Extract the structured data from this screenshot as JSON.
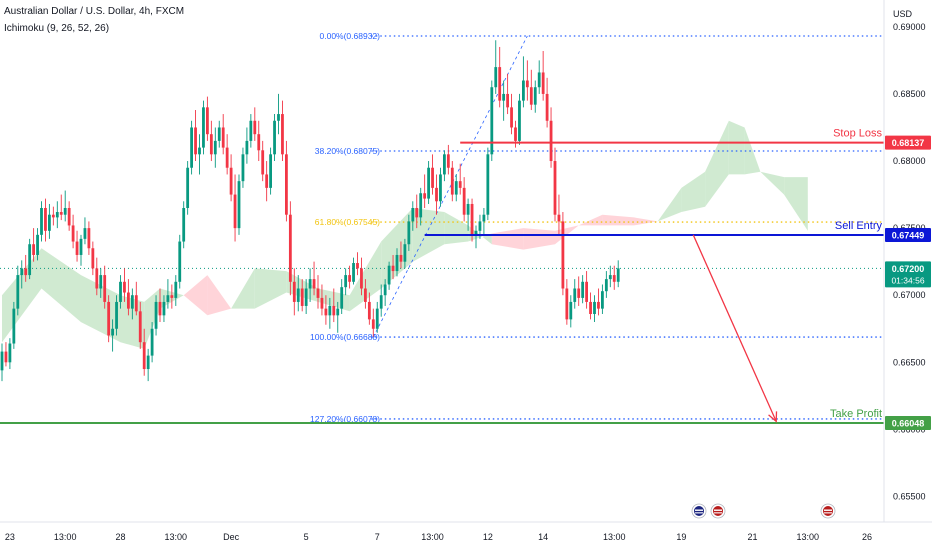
{
  "header": {
    "symbol_line": "Australian Dollar / U.S. Dollar, 4h, FXCM",
    "indicator_line": "Ichimoku (9, 26, 52, 26)"
  },
  "chart_data": {
    "type": "candlestick",
    "currency": "USD",
    "ylim": [
      0.6531,
      0.692
    ],
    "price_ticks": [
      "0.69000",
      "0.68500",
      "0.68000",
      "0.67500",
      "0.67000",
      "0.66500",
      "0.66000",
      "0.65500"
    ],
    "price_tick_values": [
      0.69,
      0.685,
      0.68,
      0.675,
      0.67,
      0.665,
      0.66,
      0.655
    ],
    "time_ticks": [
      {
        "label": "23",
        "bar": 2
      },
      {
        "label": "13:00",
        "bar": 16
      },
      {
        "label": "28",
        "bar": 30
      },
      {
        "label": "13:00",
        "bar": 44
      },
      {
        "label": "Dec",
        "bar": 58
      },
      {
        "label": "5",
        "bar": 77
      },
      {
        "label": "7",
        "bar": 95
      },
      {
        "label": "13:00",
        "bar": 109
      },
      {
        "label": "12",
        "bar": 123
      },
      {
        "label": "14",
        "bar": 137
      },
      {
        "label": "13:00",
        "bar": 155
      },
      {
        "label": "19",
        "bar": 172
      },
      {
        "label": "21",
        "bar": 190
      },
      {
        "label": "13:00",
        "bar": 204
      },
      {
        "label": "26",
        "bar": 219
      }
    ],
    "fibonacci": [
      {
        "label": "0.00%(0.68932)",
        "price": 0.68932
      },
      {
        "label": "38.20%(0.68075)",
        "price": 0.68075
      },
      {
        "label": "61.80%(0.67545)",
        "price": 0.67545
      },
      {
        "label": "100.00%(0.66688)",
        "price": 0.66688
      },
      {
        "label": "127.20%(0.66078)",
        "price": 0.66078
      }
    ],
    "levels": [
      {
        "name": "Stop Loss",
        "price": 0.68137,
        "price_label": "0.68137",
        "color": "#f23645"
      },
      {
        "name": "Sell Entry",
        "price": 0.67449,
        "price_label": "0.67449",
        "color": "#0c17d6"
      },
      {
        "name": "Take Profit",
        "price": 0.66048,
        "price_label": "0.66048",
        "color": "#43a047"
      }
    ],
    "last_price": {
      "price": 0.672,
      "label": "0.67200",
      "countdown": "01:34:56"
    },
    "forecast_arrow": {
      "from_bar": 175,
      "from_price": 0.6745,
      "to_bar": 196,
      "to_price": 0.6606
    },
    "colors": {
      "up": "#089981",
      "down": "#f23645",
      "cloud_bull": "#c8e6c9",
      "cloud_bear": "#ffcdd2"
    },
    "ohlc": [
      [
        0.6644,
        0.6664,
        0.6636,
        0.6658
      ],
      [
        0.6658,
        0.6665,
        0.6647,
        0.665
      ],
      [
        0.665,
        0.6668,
        0.6645,
        0.6664
      ],
      [
        0.6664,
        0.6695,
        0.666,
        0.669
      ],
      [
        0.669,
        0.6722,
        0.6685,
        0.6715
      ],
      [
        0.6715,
        0.6726,
        0.6705,
        0.672
      ],
      [
        0.672,
        0.673,
        0.671,
        0.6715
      ],
      [
        0.6715,
        0.6742,
        0.6712,
        0.6738
      ],
      [
        0.6738,
        0.675,
        0.6725,
        0.673
      ],
      [
        0.673,
        0.675,
        0.6726,
        0.6745
      ],
      [
        0.6745,
        0.677,
        0.674,
        0.6765
      ],
      [
        0.6765,
        0.6772,
        0.674,
        0.6748
      ],
      [
        0.6748,
        0.6768,
        0.6742,
        0.676
      ],
      [
        0.676,
        0.6766,
        0.6752,
        0.6758
      ],
      [
        0.6758,
        0.677,
        0.675,
        0.6762
      ],
      [
        0.6762,
        0.6775,
        0.6756,
        0.676
      ],
      [
        0.676,
        0.6778,
        0.6755,
        0.6765
      ],
      [
        0.6765,
        0.677,
        0.6748,
        0.6752
      ],
      [
        0.6752,
        0.676,
        0.6735,
        0.674
      ],
      [
        0.674,
        0.6748,
        0.6725,
        0.673
      ],
      [
        0.673,
        0.6745,
        0.6722,
        0.6742
      ],
      [
        0.6742,
        0.6758,
        0.6738,
        0.675
      ],
      [
        0.675,
        0.6755,
        0.673,
        0.6735
      ],
      [
        0.6735,
        0.674,
        0.6715,
        0.672
      ],
      [
        0.672,
        0.6728,
        0.67,
        0.6705
      ],
      [
        0.6705,
        0.672,
        0.6698,
        0.6715
      ],
      [
        0.6715,
        0.6722,
        0.669,
        0.6695
      ],
      [
        0.6695,
        0.67,
        0.6665,
        0.667
      ],
      [
        0.667,
        0.6682,
        0.6658,
        0.6675
      ],
      [
        0.6675,
        0.67,
        0.667,
        0.6695
      ],
      [
        0.6695,
        0.6715,
        0.669,
        0.671
      ],
      [
        0.671,
        0.672,
        0.6695,
        0.6702
      ],
      [
        0.6702,
        0.6712,
        0.6685,
        0.669
      ],
      [
        0.669,
        0.6705,
        0.6682,
        0.67
      ],
      [
        0.67,
        0.671,
        0.6685,
        0.6688
      ],
      [
        0.6688,
        0.6695,
        0.666,
        0.6665
      ],
      [
        0.6665,
        0.6675,
        0.664,
        0.6645
      ],
      [
        0.6645,
        0.666,
        0.6636,
        0.6655
      ],
      [
        0.6655,
        0.668,
        0.665,
        0.6675
      ],
      [
        0.6675,
        0.67,
        0.667,
        0.6695
      ],
      [
        0.6695,
        0.6705,
        0.668,
        0.6685
      ],
      [
        0.6685,
        0.67,
        0.668,
        0.6695
      ],
      [
        0.6695,
        0.6712,
        0.669,
        0.67
      ],
      [
        0.67,
        0.6708,
        0.669,
        0.6698
      ],
      [
        0.6698,
        0.6715,
        0.6692,
        0.671
      ],
      [
        0.671,
        0.6745,
        0.6705,
        0.674
      ],
      [
        0.674,
        0.677,
        0.6735,
        0.6765
      ],
      [
        0.6765,
        0.68,
        0.676,
        0.6795
      ],
      [
        0.6795,
        0.683,
        0.679,
        0.6825
      ],
      [
        0.6825,
        0.6838,
        0.68,
        0.6805
      ],
      [
        0.6805,
        0.682,
        0.679,
        0.681
      ],
      [
        0.681,
        0.6845,
        0.6805,
        0.684
      ],
      [
        0.684,
        0.6848,
        0.6815,
        0.682
      ],
      [
        0.682,
        0.683,
        0.68,
        0.6805
      ],
      [
        0.6805,
        0.6825,
        0.6795,
        0.6815
      ],
      [
        0.6815,
        0.683,
        0.681,
        0.6825
      ],
      [
        0.6825,
        0.6835,
        0.6805,
        0.681
      ],
      [
        0.681,
        0.682,
        0.679,
        0.6795
      ],
      [
        0.6795,
        0.6805,
        0.677,
        0.6775
      ],
      [
        0.6775,
        0.679,
        0.674,
        0.675
      ],
      [
        0.675,
        0.679,
        0.6745,
        0.6785
      ],
      [
        0.6785,
        0.681,
        0.678,
        0.6805
      ],
      [
        0.6805,
        0.6825,
        0.6798,
        0.6815
      ],
      [
        0.6815,
        0.6835,
        0.681,
        0.683
      ],
      [
        0.683,
        0.684,
        0.6815,
        0.682
      ],
      [
        0.682,
        0.683,
        0.68,
        0.6808
      ],
      [
        0.6808,
        0.6815,
        0.6785,
        0.679
      ],
      [
        0.679,
        0.68,
        0.677,
        0.678
      ],
      [
        0.678,
        0.681,
        0.6775,
        0.6805
      ],
      [
        0.6805,
        0.6835,
        0.68,
        0.683
      ],
      [
        0.683,
        0.685,
        0.682,
        0.6835
      ],
      [
        0.6835,
        0.6845,
        0.68,
        0.6805
      ],
      [
        0.6805,
        0.6815,
        0.6755,
        0.676
      ],
      [
        0.676,
        0.677,
        0.67,
        0.671
      ],
      [
        0.671,
        0.672,
        0.6685,
        0.6695
      ],
      [
        0.6695,
        0.6715,
        0.6688,
        0.6705
      ],
      [
        0.6705,
        0.6712,
        0.6688,
        0.6692
      ],
      [
        0.6692,
        0.6712,
        0.6686,
        0.6705
      ],
      [
        0.6705,
        0.672,
        0.6695,
        0.6712
      ],
      [
        0.6712,
        0.6725,
        0.67,
        0.6705
      ],
      [
        0.6705,
        0.6715,
        0.669,
        0.6698
      ],
      [
        0.6698,
        0.6708,
        0.6685,
        0.669
      ],
      [
        0.669,
        0.67,
        0.6678,
        0.6685
      ],
      [
        0.6685,
        0.6698,
        0.6675,
        0.6692
      ],
      [
        0.6692,
        0.6705,
        0.668,
        0.6685
      ],
      [
        0.6685,
        0.6695,
        0.6672,
        0.669
      ],
      [
        0.669,
        0.6712,
        0.6686,
        0.6706
      ],
      [
        0.6706,
        0.672,
        0.67,
        0.6715
      ],
      [
        0.6715,
        0.6722,
        0.6705,
        0.671
      ],
      [
        0.671,
        0.6728,
        0.6708,
        0.6724
      ],
      [
        0.6724,
        0.6732,
        0.6715,
        0.672
      ],
      [
        0.672,
        0.6728,
        0.67,
        0.6705
      ],
      [
        0.6705,
        0.6712,
        0.669,
        0.6695
      ],
      [
        0.6695,
        0.6702,
        0.6678,
        0.6682
      ],
      [
        0.6682,
        0.669,
        0.6669,
        0.6675
      ],
      [
        0.6675,
        0.6695,
        0.6672,
        0.669
      ],
      [
        0.669,
        0.6708,
        0.6684,
        0.67
      ],
      [
        0.67,
        0.6712,
        0.6692,
        0.6708
      ],
      [
        0.6708,
        0.6725,
        0.6704,
        0.6722
      ],
      [
        0.6722,
        0.673,
        0.6712,
        0.6718
      ],
      [
        0.6718,
        0.6735,
        0.6714,
        0.673
      ],
      [
        0.673,
        0.674,
        0.672,
        0.6725
      ],
      [
        0.6725,
        0.6742,
        0.672,
        0.6738
      ],
      [
        0.6738,
        0.676,
        0.6733,
        0.6755
      ],
      [
        0.6755,
        0.677,
        0.6748,
        0.6765
      ],
      [
        0.6765,
        0.6775,
        0.675,
        0.6758
      ],
      [
        0.6758,
        0.678,
        0.6752,
        0.6776
      ],
      [
        0.6776,
        0.679,
        0.6765,
        0.6772
      ],
      [
        0.6772,
        0.68,
        0.6768,
        0.6795
      ],
      [
        0.6795,
        0.6805,
        0.6775,
        0.678
      ],
      [
        0.678,
        0.679,
        0.676,
        0.677
      ],
      [
        0.677,
        0.6795,
        0.6766,
        0.679
      ],
      [
        0.679,
        0.6808,
        0.6785,
        0.6805
      ],
      [
        0.6805,
        0.6812,
        0.679,
        0.6795
      ],
      [
        0.6795,
        0.68,
        0.677,
        0.6775
      ],
      [
        0.6775,
        0.679,
        0.677,
        0.6785
      ],
      [
        0.6785,
        0.6798,
        0.6775,
        0.678
      ],
      [
        0.678,
        0.6788,
        0.6755,
        0.676
      ],
      [
        0.676,
        0.6772,
        0.6748,
        0.6768
      ],
      [
        0.6768,
        0.6772,
        0.674,
        0.6745
      ],
      [
        0.6745,
        0.6752,
        0.6735,
        0.6748
      ],
      [
        0.6748,
        0.676,
        0.6742,
        0.6755
      ],
      [
        0.6755,
        0.6765,
        0.6745,
        0.676
      ],
      [
        0.676,
        0.681,
        0.6756,
        0.6805
      ],
      [
        0.6805,
        0.686,
        0.68,
        0.6855
      ],
      [
        0.6855,
        0.689,
        0.685,
        0.687
      ],
      [
        0.687,
        0.6885,
        0.684,
        0.6845
      ],
      [
        0.6845,
        0.686,
        0.683,
        0.685
      ],
      [
        0.685,
        0.6865,
        0.6835,
        0.684
      ],
      [
        0.684,
        0.685,
        0.682,
        0.6825
      ],
      [
        0.6825,
        0.683,
        0.681,
        0.6815
      ],
      [
        0.6815,
        0.685,
        0.6812,
        0.6845
      ],
      [
        0.6845,
        0.6878,
        0.684,
        0.686
      ],
      [
        0.686,
        0.6875,
        0.6845,
        0.6855
      ],
      [
        0.6855,
        0.6868,
        0.6838,
        0.6842
      ],
      [
        0.6842,
        0.686,
        0.6836,
        0.6855
      ],
      [
        0.6855,
        0.6875,
        0.685,
        0.6866
      ],
      [
        0.6866,
        0.6882,
        0.6845,
        0.685
      ],
      [
        0.685,
        0.6862,
        0.6825,
        0.683
      ],
      [
        0.683,
        0.684,
        0.6795,
        0.68
      ],
      [
        0.68,
        0.681,
        0.6755,
        0.676
      ],
      [
        0.676,
        0.6775,
        0.6745,
        0.6755
      ],
      [
        0.6755,
        0.6762,
        0.67,
        0.6705
      ],
      [
        0.6705,
        0.6712,
        0.6678,
        0.6682
      ],
      [
        0.6682,
        0.67,
        0.6676,
        0.6695
      ],
      [
        0.6695,
        0.6712,
        0.669,
        0.6705
      ],
      [
        0.6705,
        0.6714,
        0.6692,
        0.6698
      ],
      [
        0.6698,
        0.6715,
        0.6694,
        0.671
      ],
      [
        0.671,
        0.6718,
        0.669,
        0.6695
      ],
      [
        0.6695,
        0.6702,
        0.6682,
        0.6686
      ],
      [
        0.6686,
        0.67,
        0.668,
        0.6695
      ],
      [
        0.6695,
        0.6705,
        0.6685,
        0.669
      ],
      [
        0.669,
        0.6708,
        0.6686,
        0.6703
      ],
      [
        0.6703,
        0.6718,
        0.6698,
        0.6712
      ],
      [
        0.6712,
        0.6722,
        0.6706,
        0.6715
      ],
      [
        0.6715,
        0.6722,
        0.6704,
        0.671
      ],
      [
        0.671,
        0.6726,
        0.6706,
        0.672
      ]
    ],
    "ichimoku_cloud": [
      [
        0,
        0.67,
        0.6665
      ],
      [
        10,
        0.6735,
        0.6705
      ],
      [
        20,
        0.6715,
        0.668
      ],
      [
        30,
        0.67,
        0.6665
      ],
      [
        36,
        0.6695,
        0.666
      ],
      [
        40,
        0.6705,
        0.669
      ],
      [
        46,
        0.67,
        0.67
      ],
      [
        52,
        0.6685,
        0.6715
      ],
      [
        58,
        0.669,
        0.669
      ],
      [
        64,
        0.672,
        0.669
      ],
      [
        72,
        0.6718,
        0.6702
      ],
      [
        80,
        0.6705,
        0.6695
      ],
      [
        88,
        0.67,
        0.6688
      ],
      [
        96,
        0.674,
        0.6705
      ],
      [
        104,
        0.6765,
        0.6725
      ],
      [
        112,
        0.6762,
        0.6738
      ],
      [
        118,
        0.6752,
        0.674
      ],
      [
        124,
        0.6738,
        0.6746
      ],
      [
        132,
        0.6734,
        0.675
      ],
      [
        140,
        0.6738,
        0.6748
      ],
      [
        146,
        0.6752,
        0.6752
      ],
      [
        152,
        0.6752,
        0.676
      ],
      [
        160,
        0.6752,
        0.6758
      ],
      [
        166,
        0.6755,
        0.6755
      ],
      [
        172,
        0.678,
        0.6762
      ],
      [
        178,
        0.6792,
        0.6766
      ],
      [
        184,
        0.683,
        0.679
      ],
      [
        188,
        0.6825,
        0.679
      ],
      [
        192,
        0.6792,
        0.6792
      ],
      [
        198,
        0.6788,
        0.6775
      ],
      [
        204,
        0.6788,
        0.6748
      ]
    ]
  }
}
